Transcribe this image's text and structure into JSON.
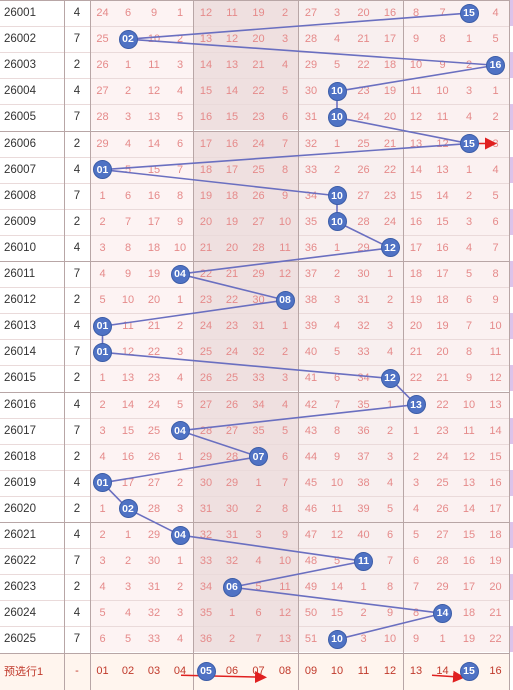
{
  "chart_data": {
    "type": "table",
    "rows": [
      {
        "period": "26001",
        "sum": "4",
        "cells": [
          "24",
          "6",
          "9",
          "1",
          "12",
          "11",
          "19",
          "2",
          "27",
          "3",
          "20",
          "16",
          "8",
          "7",
          "15",
          "4"
        ],
        "ball": 15
      },
      {
        "period": "26002",
        "sum": "7",
        "cells": [
          "25",
          "02",
          "10",
          "2",
          "13",
          "12",
          "20",
          "3",
          "28",
          "4",
          "21",
          "17",
          "9",
          "8",
          "1",
          "5"
        ],
        "ball": 2
      },
      {
        "period": "26003",
        "sum": "2",
        "cells": [
          "26",
          "1",
          "11",
          "3",
          "14",
          "13",
          "21",
          "4",
          "29",
          "5",
          "22",
          "18",
          "10",
          "9",
          "2",
          "16"
        ],
        "ball": 16
      },
      {
        "period": "26004",
        "sum": "4",
        "cells": [
          "27",
          "2",
          "12",
          "4",
          "15",
          "14",
          "22",
          "5",
          "30",
          "10",
          "23",
          "19",
          "11",
          "10",
          "3",
          "1"
        ],
        "ball": 10
      },
      {
        "period": "26005",
        "sum": "7",
        "cells": [
          "28",
          "3",
          "13",
          "5",
          "16",
          "15",
          "23",
          "6",
          "31",
          "10",
          "24",
          "20",
          "12",
          "11",
          "4",
          "2"
        ],
        "ball": 10
      },
      {
        "period": "26006",
        "sum": "2",
        "cells": [
          "29",
          "4",
          "14",
          "6",
          "17",
          "16",
          "24",
          "7",
          "32",
          "1",
          "25",
          "21",
          "13",
          "12",
          "15",
          "3"
        ],
        "ball": 15
      },
      {
        "period": "26007",
        "sum": "4",
        "cells": [
          "01",
          "5",
          "15",
          "7",
          "18",
          "17",
          "25",
          "8",
          "33",
          "2",
          "26",
          "22",
          "14",
          "13",
          "1",
          "4"
        ],
        "ball": 1
      },
      {
        "period": "26008",
        "sum": "7",
        "cells": [
          "1",
          "6",
          "16",
          "8",
          "19",
          "18",
          "26",
          "9",
          "34",
          "10",
          "27",
          "23",
          "15",
          "14",
          "2",
          "5"
        ],
        "ball": 10
      },
      {
        "period": "26009",
        "sum": "2",
        "cells": [
          "2",
          "7",
          "17",
          "9",
          "20",
          "19",
          "27",
          "10",
          "35",
          "10",
          "28",
          "24",
          "16",
          "15",
          "3",
          "6"
        ],
        "ball": 10
      },
      {
        "period": "26010",
        "sum": "4",
        "cells": [
          "3",
          "8",
          "18",
          "10",
          "21",
          "20",
          "28",
          "11",
          "36",
          "1",
          "29",
          "12",
          "17",
          "16",
          "4",
          "7"
        ],
        "ball": 12
      },
      {
        "period": "26011",
        "sum": "7",
        "cells": [
          "4",
          "9",
          "19",
          "04",
          "22",
          "21",
          "29",
          "12",
          "37",
          "2",
          "30",
          "1",
          "18",
          "17",
          "5",
          "8"
        ],
        "ball": 4
      },
      {
        "period": "26012",
        "sum": "2",
        "cells": [
          "5",
          "10",
          "20",
          "1",
          "23",
          "22",
          "30",
          "08",
          "38",
          "3",
          "31",
          "2",
          "19",
          "18",
          "6",
          "9"
        ],
        "ball": 8
      },
      {
        "period": "26013",
        "sum": "4",
        "cells": [
          "01",
          "11",
          "21",
          "2",
          "24",
          "23",
          "31",
          "1",
          "39",
          "4",
          "32",
          "3",
          "20",
          "19",
          "7",
          "10"
        ],
        "ball": 1
      },
      {
        "period": "26014",
        "sum": "7",
        "cells": [
          "01",
          "12",
          "22",
          "3",
          "25",
          "24",
          "32",
          "2",
          "40",
          "5",
          "33",
          "4",
          "21",
          "20",
          "8",
          "11"
        ],
        "ball": 1
      },
      {
        "period": "26015",
        "sum": "2",
        "cells": [
          "1",
          "13",
          "23",
          "4",
          "26",
          "25",
          "33",
          "3",
          "41",
          "6",
          "34",
          "12",
          "22",
          "21",
          "9",
          "12"
        ],
        "ball": 12
      },
      {
        "period": "26016",
        "sum": "4",
        "cells": [
          "2",
          "14",
          "24",
          "5",
          "27",
          "26",
          "34",
          "4",
          "42",
          "7",
          "35",
          "1",
          "13",
          "22",
          "10",
          "13"
        ],
        "ball": 13
      },
      {
        "period": "26017",
        "sum": "7",
        "cells": [
          "3",
          "15",
          "25",
          "04",
          "28",
          "27",
          "35",
          "5",
          "43",
          "8",
          "36",
          "2",
          "1",
          "23",
          "11",
          "14"
        ],
        "ball": 4
      },
      {
        "period": "26018",
        "sum": "2",
        "cells": [
          "4",
          "16",
          "26",
          "1",
          "29",
          "28",
          "07",
          "6",
          "44",
          "9",
          "37",
          "3",
          "2",
          "24",
          "12",
          "15"
        ],
        "ball": 7
      },
      {
        "period": "26019",
        "sum": "4",
        "cells": [
          "01",
          "17",
          "27",
          "2",
          "30",
          "29",
          "1",
          "7",
          "45",
          "10",
          "38",
          "4",
          "3",
          "25",
          "13",
          "16"
        ],
        "ball": 1
      },
      {
        "period": "26020",
        "sum": "2",
        "cells": [
          "1",
          "02",
          "28",
          "3",
          "31",
          "30",
          "2",
          "8",
          "46",
          "11",
          "39",
          "5",
          "4",
          "26",
          "14",
          "17"
        ],
        "ball": 2
      },
      {
        "period": "26021",
        "sum": "4",
        "cells": [
          "2",
          "1",
          "29",
          "04",
          "32",
          "31",
          "3",
          "9",
          "47",
          "12",
          "40",
          "6",
          "5",
          "27",
          "15",
          "18"
        ],
        "ball": 4
      },
      {
        "period": "26022",
        "sum": "7",
        "cells": [
          "3",
          "2",
          "30",
          "1",
          "33",
          "32",
          "4",
          "10",
          "48",
          "5",
          "11",
          "7",
          "6",
          "28",
          "16",
          "19"
        ],
        "ball": 11
      },
      {
        "period": "26023",
        "sum": "2",
        "cells": [
          "4",
          "3",
          "31",
          "2",
          "34",
          "06",
          "5",
          "11",
          "49",
          "14",
          "1",
          "8",
          "7",
          "29",
          "17",
          "20"
        ],
        "ball": 6
      },
      {
        "period": "26024",
        "sum": "4",
        "cells": [
          "5",
          "4",
          "32",
          "3",
          "35",
          "1",
          "6",
          "12",
          "50",
          "15",
          "2",
          "9",
          "8",
          "14",
          "18",
          "21"
        ],
        "ball": 14
      },
      {
        "period": "26025",
        "sum": "7",
        "cells": [
          "6",
          "5",
          "33",
          "4",
          "36",
          "2",
          "7",
          "13",
          "51",
          "10",
          "3",
          "10",
          "9",
          "1",
          "19",
          "22"
        ],
        "ball": 10
      }
    ],
    "forecast": {
      "label": "预选行1",
      "sum": "-",
      "cells": [
        "01",
        "02",
        "03",
        "04",
        "05",
        "06",
        "07",
        "08",
        "09",
        "10",
        "11",
        "12",
        "13",
        "14",
        "15",
        "16"
      ],
      "highlighted": [
        5,
        15
      ]
    }
  }
}
